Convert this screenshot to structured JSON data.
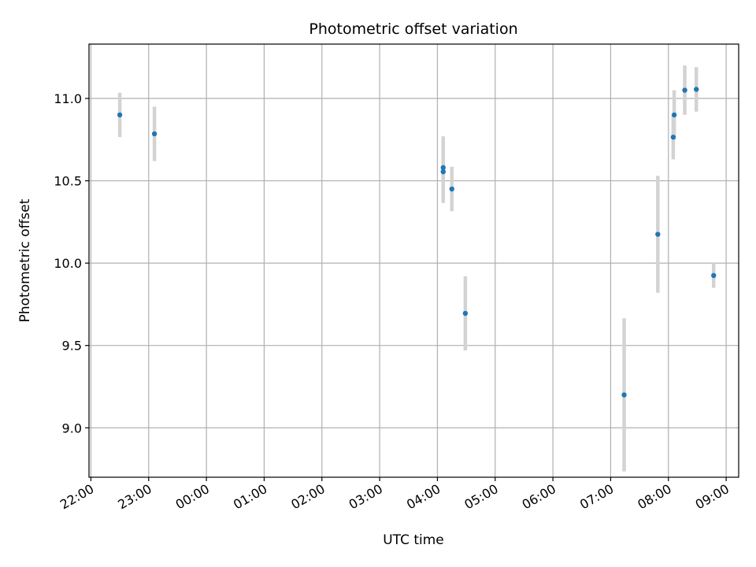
{
  "chart_data": {
    "type": "scatter",
    "title": "Photometric offset variation",
    "xlabel": "UTC time",
    "ylabel": "Photometric offset",
    "x_axis": "time",
    "x_ticks": [
      "22:00",
      "23:00",
      "00:00",
      "01:00",
      "02:00",
      "03:00",
      "04:00",
      "05:00",
      "06:00",
      "07:00",
      "08:00",
      "09:00"
    ],
    "y_ticks": [
      "9.0",
      "9.5",
      "10.0",
      "10.5",
      "11.0"
    ],
    "xlim": [
      "21:58",
      "09:13"
    ],
    "ylim": [
      8.7,
      11.33
    ],
    "grid": true,
    "colors": {
      "point": "#1f77b4",
      "errorbar": "#d3d3d3",
      "grid": "#b0b0b0"
    },
    "points": [
      {
        "x": "22:30",
        "y": 10.9,
        "err": 0.135
      },
      {
        "x": "23:06",
        "y": 10.785,
        "err": 0.165
      },
      {
        "x": "04:06",
        "y": 10.58,
        "err": 0.19
      },
      {
        "x": "04:06",
        "y": 10.555,
        "err": 0.19
      },
      {
        "x": "04:15",
        "y": 10.45,
        "err": 0.135
      },
      {
        "x": "04:29",
        "y": 9.695,
        "err": 0.225
      },
      {
        "x": "07:14",
        "y": 9.2,
        "err": 0.465
      },
      {
        "x": "07:49",
        "y": 10.175,
        "err": 0.355
      },
      {
        "x": "08:05",
        "y": 10.765,
        "err": 0.135
      },
      {
        "x": "08:06",
        "y": 10.9,
        "err": 0.15
      },
      {
        "x": "08:17",
        "y": 11.05,
        "err": 0.15
      },
      {
        "x": "08:29",
        "y": 11.055,
        "err": 0.135
      },
      {
        "x": "08:47",
        "y": 9.925,
        "err": 0.075
      }
    ]
  }
}
